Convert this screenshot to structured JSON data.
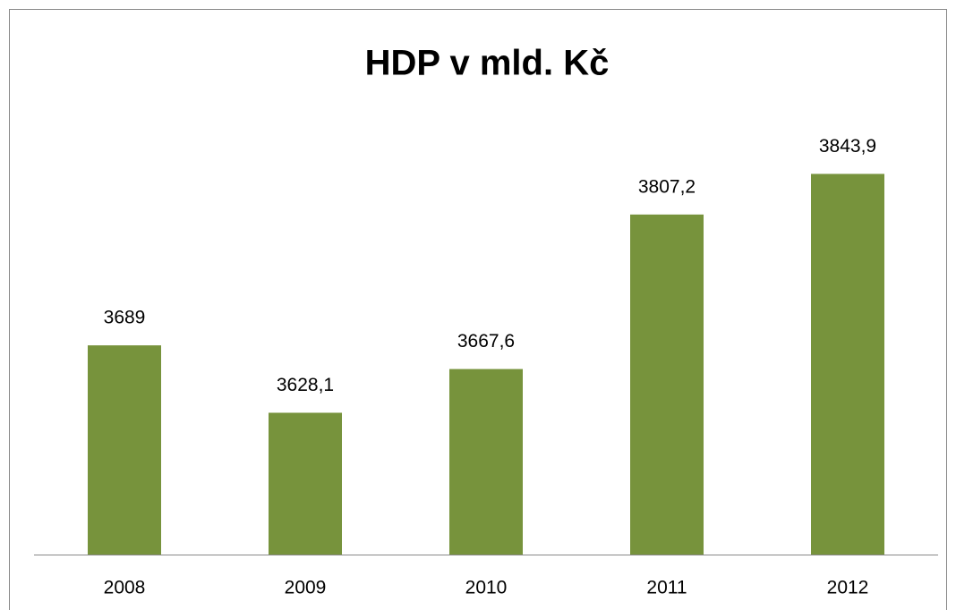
{
  "chart_data": {
    "type": "bar",
    "title": "HDP v mld. Kč",
    "categories": [
      "2008",
      "2009",
      "2010",
      "2011",
      "2012"
    ],
    "values": [
      3689,
      3628.1,
      3667.6,
      3807.2,
      3843.9
    ],
    "value_labels": [
      "3689",
      "3628,1",
      "3667,6",
      "3807,2",
      "3843,9"
    ],
    "color": "#77933c",
    "ylim": [
      3500,
      3900
    ]
  }
}
